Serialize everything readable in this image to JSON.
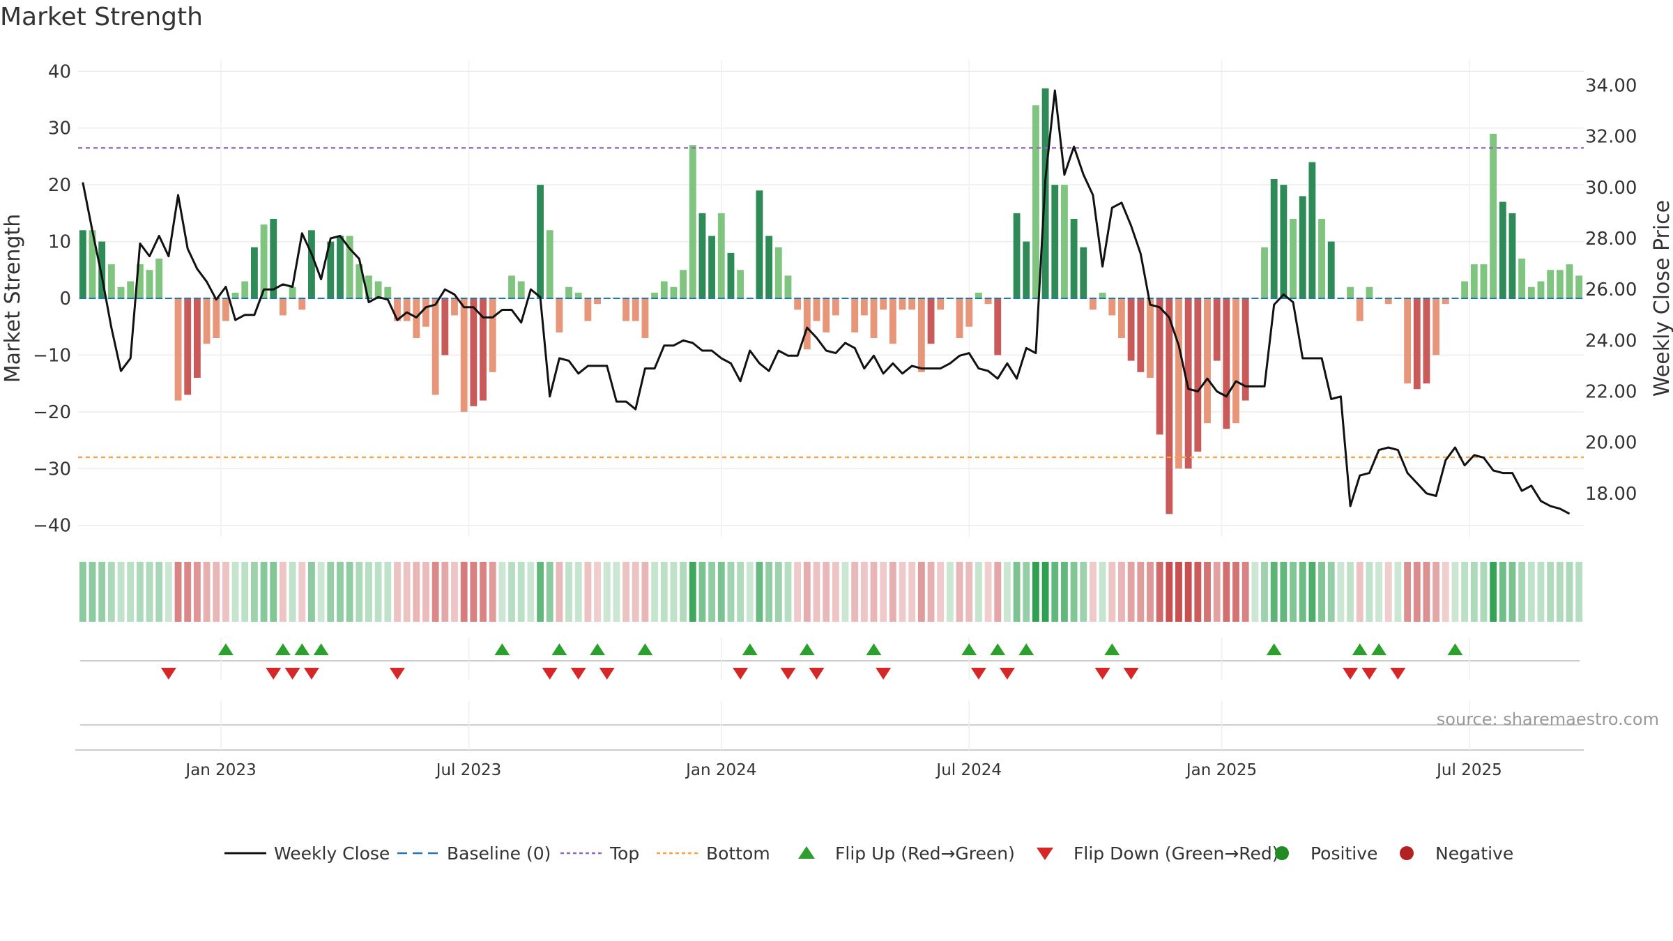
{
  "title": "Market Strength",
  "source": "source: sharemaestro.com",
  "colors": {
    "strong_green": "#2e8b57",
    "light_green": "#7fc47f",
    "strong_red": "#c85a5a",
    "light_red": "#e8967a",
    "close_line": "#111111",
    "baseline": "#1f77b4",
    "top_line": "#9467bd",
    "bottom_line": "#ff9f40",
    "flip_up": "#2ca02c",
    "flip_down": "#d62728",
    "positive": "#228b22",
    "negative": "#b22222"
  },
  "chart_data": {
    "type": "bar",
    "ylabel": "Market Strength",
    "y2label": "Weekly Close Price",
    "ylim": [
      -42,
      42
    ],
    "y2lim": [
      16.3,
      35.0
    ],
    "yticks": [
      "40",
      "30",
      "20",
      "10",
      "0",
      "−10",
      "−20",
      "−30",
      "−40"
    ],
    "y2ticks": [
      "34.00",
      "32.00",
      "30.00",
      "28.00",
      "26.00",
      "24.00",
      "22.00",
      "20.00",
      "18.00"
    ],
    "top_level": 26.5,
    "bottom_level": -28,
    "x_labels": [
      "Jan 2023",
      "Jul 2023",
      "Jan 2024",
      "Jul 2024",
      "Jan 2025",
      "Jul 2025"
    ],
    "x_label_weeks": [
      15,
      41,
      67.5,
      93.5,
      120,
      146
    ],
    "strength": [
      12,
      12,
      10,
      6,
      2,
      3,
      6,
      5,
      7,
      0,
      -18,
      -17,
      -14,
      -8,
      -7,
      -4,
      1,
      3,
      9,
      13,
      14,
      -3,
      2,
      -2,
      12,
      0,
      10,
      11,
      11,
      6,
      4,
      3,
      2,
      -4,
      -4,
      -7,
      -5,
      -17,
      -10,
      -3,
      -20,
      -19,
      -18,
      -13,
      0,
      4,
      3,
      0,
      20,
      12,
      -6,
      2,
      1,
      -4,
      -1,
      0,
      0,
      -4,
      -4,
      -7,
      1,
      3,
      2,
      5,
      27,
      15,
      11,
      15,
      8,
      5,
      0,
      19,
      11,
      9,
      4,
      -2,
      -9,
      -4,
      -6,
      -3,
      0,
      -6,
      -3,
      -7,
      -2,
      -8,
      -2,
      -2,
      -13,
      -8,
      -2,
      0,
      -7,
      -5,
      1,
      -1,
      -10,
      0,
      15,
      10,
      34,
      37,
      20,
      20,
      14,
      9,
      -2,
      1,
      -3,
      -7,
      -11,
      -13,
      -14,
      -24,
      -38,
      -30,
      -30,
      -27,
      -22,
      -11,
      -23,
      -22,
      -18,
      0,
      9,
      21,
      20,
      14,
      18,
      24,
      14,
      10,
      0,
      2,
      -4,
      2,
      0,
      -1,
      0,
      -15,
      -16,
      -15,
      -10,
      -1,
      0,
      3,
      6,
      6,
      29,
      17,
      15,
      7,
      2,
      3,
      5,
      5,
      6,
      4
    ],
    "weekly_close": [
      30.2,
      28.3,
      26.5,
      24.5,
      22.8,
      23.3,
      27.8,
      27.3,
      28.1,
      27.3,
      29.7,
      27.6,
      26.8,
      26.3,
      25.6,
      26.1,
      24.8,
      25.0,
      25.0,
      26.0,
      26.0,
      26.2,
      26.1,
      28.2,
      27.4,
      26.4,
      28.0,
      28.1,
      27.6,
      27.2,
      25.5,
      25.7,
      25.6,
      24.8,
      25.1,
      24.9,
      25.3,
      25.4,
      26.0,
      25.8,
      25.3,
      25.3,
      24.9,
      24.9,
      25.2,
      25.2,
      24.7,
      26.0,
      25.7,
      21.8,
      23.3,
      23.2,
      22.7,
      23.0,
      23.0,
      23.0,
      21.6,
      21.6,
      21.3,
      22.9,
      22.9,
      23.8,
      23.8,
      24.0,
      23.9,
      23.6,
      23.6,
      23.3,
      23.1,
      22.4,
      23.6,
      23.1,
      22.8,
      23.6,
      23.4,
      23.4,
      24.5,
      24.1,
      23.6,
      23.5,
      23.9,
      23.7,
      22.9,
      23.4,
      22.7,
      23.1,
      22.7,
      23.0,
      22.9,
      22.9,
      22.9,
      23.1,
      23.4,
      23.5,
      22.9,
      22.8,
      22.5,
      23.1,
      22.5,
      23.7,
      23.5,
      30.3,
      33.8,
      30.5,
      31.6,
      30.5,
      29.7,
      26.9,
      29.2,
      29.4,
      28.5,
      27.4,
      25.4,
      25.3,
      24.9,
      23.8,
      22.1,
      22.0,
      22.5,
      22.0,
      21.8,
      22.4,
      22.2,
      22.2,
      22.2,
      25.4,
      25.8,
      25.5,
      23.3,
      23.3,
      23.3,
      21.7,
      21.8,
      17.5,
      18.7,
      18.8,
      19.7,
      19.8,
      19.7,
      18.8,
      18.4,
      18.0,
      17.9,
      19.3,
      19.8,
      19.1,
      19.5,
      19.4,
      18.9,
      18.8,
      18.8,
      18.1,
      18.3,
      17.7,
      17.5,
      17.4,
      17.2
    ],
    "flip_up_weeks": [
      15,
      21,
      23,
      25,
      44,
      50,
      54,
      59,
      70,
      76,
      83,
      93,
      96,
      99,
      108,
      125,
      134,
      136,
      144
    ],
    "flip_down_weeks": [
      9,
      20,
      22,
      24,
      33,
      49,
      52,
      55,
      69,
      74,
      77,
      84,
      94,
      97,
      107,
      110,
      133,
      135,
      138
    ],
    "legend": [
      "Weekly Close",
      "Baseline (0)",
      "Top",
      "Bottom",
      "Flip Up (Red→Green)",
      "Flip Down (Green→Red)",
      "Positive",
      "Negative"
    ]
  }
}
